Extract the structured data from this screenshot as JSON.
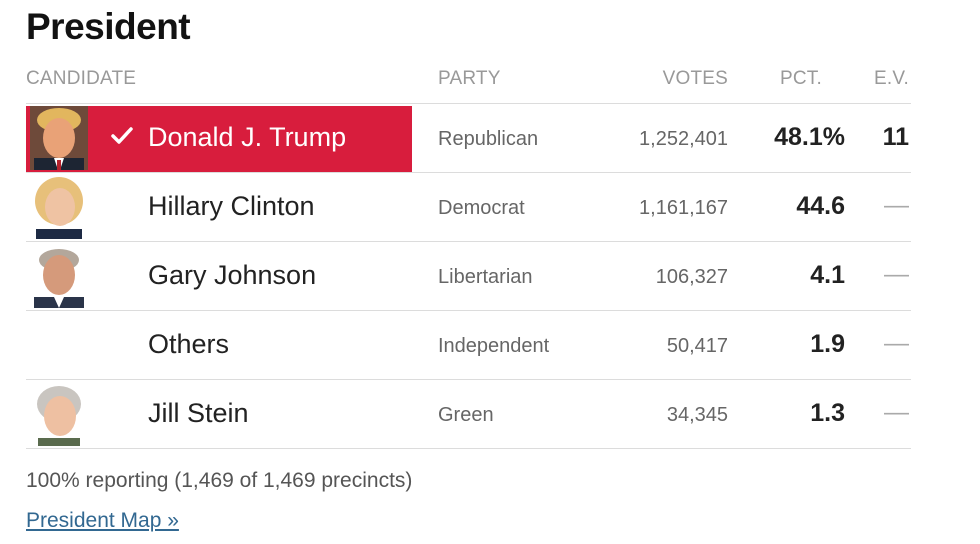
{
  "title": "President",
  "headers": {
    "candidate": "CANDIDATE",
    "party": "PARTY",
    "votes": "VOTES",
    "pct": "PCT.",
    "ev": "E.V."
  },
  "rows": [
    {
      "name": "Donald J. Trump",
      "party": "Republican",
      "votes": "1,252,401",
      "pct": "48.1%",
      "ev": "11",
      "winner": true
    },
    {
      "name": "Hillary Clinton",
      "party": "Democrat",
      "votes": "1,161,167",
      "pct": "44.6",
      "ev": "—"
    },
    {
      "name": "Gary Johnson",
      "party": "Libertarian",
      "votes": "106,327",
      "pct": "4.1",
      "ev": "—"
    },
    {
      "name": "Others",
      "party": "Independent",
      "votes": "50,417",
      "pct": "1.9",
      "ev": "—"
    },
    {
      "name": "Jill Stein",
      "party": "Green",
      "votes": "34,345",
      "pct": "1.3",
      "ev": "—"
    }
  ],
  "footer": {
    "reporting": "100% reporting (1,469 of 1,469 precincts)",
    "map_link": "President Map »"
  },
  "colors": {
    "winner": "#d81d3d",
    "link": "#326891"
  },
  "icons": {
    "winner_mark": "check-icon"
  }
}
